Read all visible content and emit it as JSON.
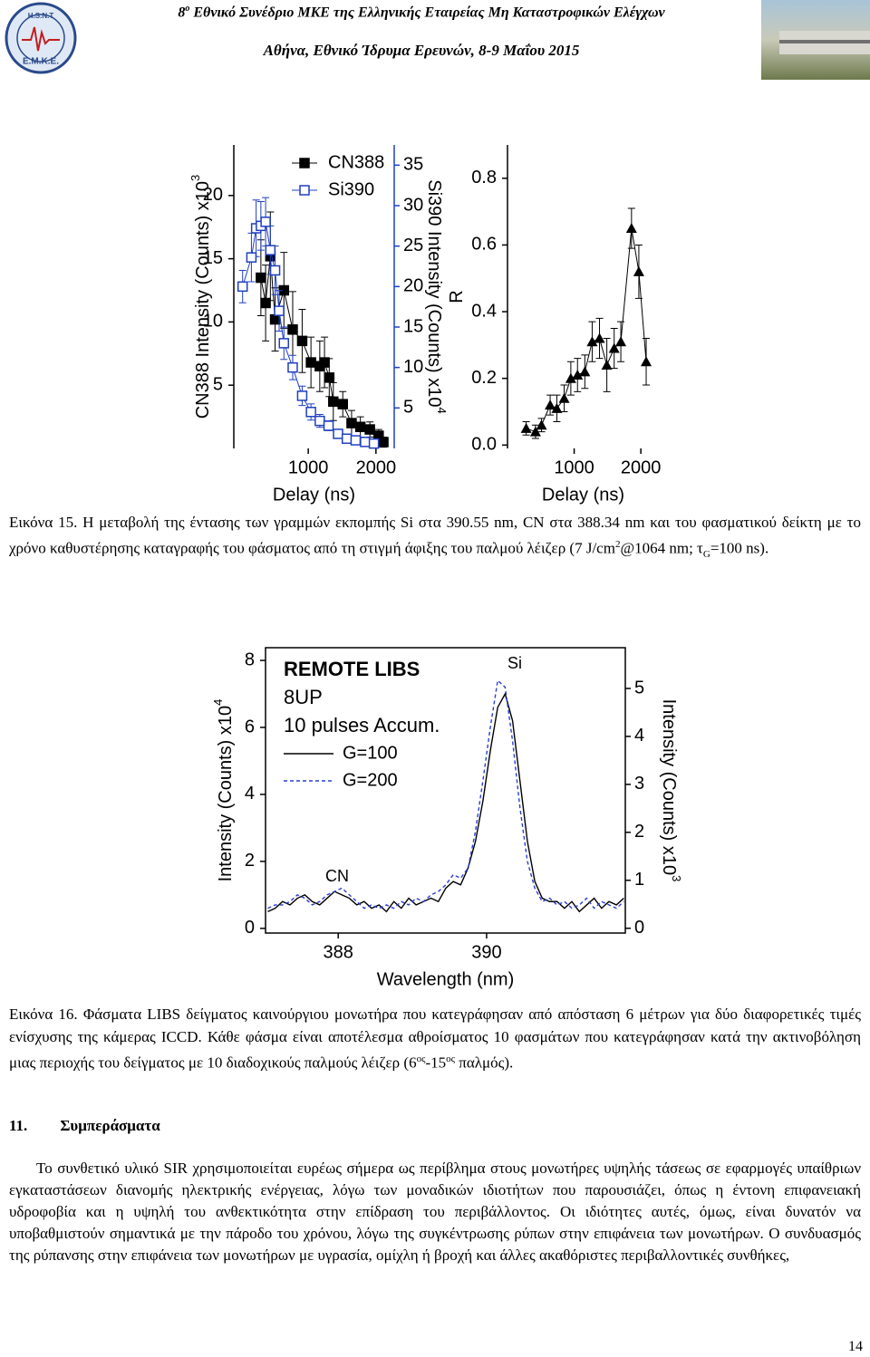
{
  "header": {
    "line1_prefix": "8",
    "line1_sup": "ο",
    "line1": "Εθνικό Συνέδριο ΜΚΕ της Ελληνικής Εταιρείας Μη Καταστροφικών Ελέγχων",
    "line2": "Αθήνα, Εθνικό Ίδρυμα Ερευνών, 8-9 Μαΐου 2015"
  },
  "logo": {
    "top": "H.S.N.T",
    "bottom": "Ε.Μ.Κ.Ε."
  },
  "chart_data": [
    {
      "type": "line",
      "xlabel": "Delay (ns)",
      "ylabel": "CN388 Intensity (Counts) x10",
      "ylabel_exponent": "3",
      "y2label": "Si390 Intensity (Counts) x10",
      "y2label_exponent": "4",
      "xlim": [
        -100,
        2270
      ],
      "xticks": [
        1000,
        2000
      ],
      "ylim": [
        0,
        24
      ],
      "yticks": [
        5,
        10,
        15,
        20
      ],
      "y2lim": [
        0,
        37.5
      ],
      "y2ticks": [
        5,
        10,
        15,
        20,
        25,
        30,
        35
      ],
      "legend": "upper center",
      "series": [
        {
          "name": "CN388",
          "color": "#000000",
          "marker": "filled-square",
          "x": [
            300,
            370,
            440,
            510,
            640,
            770,
            910,
            1040,
            1170,
            1240,
            1310,
            1370,
            1510,
            1640,
            1770,
            1910,
            2040,
            2110
          ],
          "values": [
            13.5,
            11.5,
            15.2,
            10.2,
            12.5,
            9.4,
            8.5,
            6.8,
            6.5,
            6.8,
            5.6,
            3.7,
            3.5,
            2.0,
            1.7,
            1.5,
            1.0,
            0.5
          ],
          "errors": [
            3,
            3,
            3.5,
            2.5,
            3,
            3,
            2.5,
            2,
            2,
            2,
            1.5,
            1.5,
            1,
            1,
            0.8,
            0.6,
            0.5,
            0.4
          ]
        },
        {
          "name": "Si390",
          "color": "#1f3fbf",
          "marker": "open-square",
          "axis": "y2",
          "x": [
            30,
            160,
            230,
            300,
            370,
            440,
            510,
            570,
            640,
            770,
            910,
            1040,
            1170,
            1300,
            1440,
            1570,
            1700,
            1840,
            1970
          ],
          "values": [
            20,
            23.6,
            27.2,
            27.5,
            28,
            24.5,
            22,
            17,
            13,
            10,
            6.5,
            4.5,
            3.4,
            2.8,
            1.8,
            1.2,
            1.0,
            0.8,
            0.6
          ],
          "errors": [
            2,
            3,
            3.5,
            3,
            3,
            3,
            3,
            2.5,
            2,
            1.5,
            1.2,
            1,
            0.8,
            0.6,
            0.5,
            0.4,
            0.3,
            0.3,
            0.3
          ]
        }
      ]
    },
    {
      "type": "line",
      "xlabel": "Delay (ns)",
      "ylabel": "R",
      "xlim": [
        0,
        2270
      ],
      "xticks": [
        1000,
        2000
      ],
      "ylim": [
        -0.01,
        0.9
      ],
      "yticks": [
        {
          "value": 0,
          "label": "0.0"
        },
        0.2,
        0.4,
        0.6,
        0.8
      ],
      "series": [
        {
          "color": "#000000",
          "marker": "triangle",
          "x": [
            280,
            420,
            510,
            640,
            740,
            850,
            950,
            1050,
            1160,
            1270,
            1380,
            1490,
            1600,
            1700,
            1860,
            1970,
            2080
          ],
          "values": [
            0.05,
            0.04,
            0.06,
            0.12,
            0.11,
            0.14,
            0.2,
            0.21,
            0.22,
            0.31,
            0.32,
            0.24,
            0.29,
            0.31,
            0.65,
            0.52,
            0.25
          ],
          "errors": [
            0.02,
            0.02,
            0.02,
            0.03,
            0.04,
            0.04,
            0.05,
            0.05,
            0.05,
            0.06,
            0.06,
            0.08,
            0.06,
            0.06,
            0.06,
            0.08,
            0.07
          ]
        }
      ]
    },
    {
      "type": "line",
      "xlabel": "Wavelength (nm)",
      "ylabel": "Intensity (Counts) x10",
      "ylabel_exponent": "4",
      "y2label": "Intensity (Counts) x10",
      "y2label_exponent": "3",
      "xlim": [
        387.02,
        391.87
      ],
      "xticks": [
        388,
        390
      ],
      "ylim": [
        -0.14,
        8.38
      ],
      "yticks": [
        0,
        2,
        4,
        6,
        8
      ],
      "y2lim": [
        -0.1,
        5.85
      ],
      "y2ticks": [
        0,
        1,
        2,
        3,
        4,
        5
      ],
      "frame": true,
      "notes": [
        "REMOTE LIBS",
        "8UP",
        "10 pulses Accum."
      ],
      "annotations": [
        "Si",
        "CN"
      ],
      "series": [
        {
          "name": "G=100",
          "color": "#000000",
          "linestyle": "solid",
          "x": [
            387.05,
            387.15,
            387.25,
            387.35,
            387.45,
            387.55,
            387.65,
            387.75,
            387.85,
            387.95,
            388.05,
            388.15,
            388.25,
            388.35,
            388.45,
            388.55,
            388.65,
            388.75,
            388.85,
            388.95,
            389.05,
            389.15,
            389.25,
            389.35,
            389.45,
            389.55,
            389.65,
            389.75,
            389.85,
            389.95,
            390.05,
            390.15,
            390.25,
            390.35,
            390.45,
            390.55,
            390.65,
            390.75,
            390.85,
            390.95,
            391.05,
            391.15,
            391.25,
            391.35,
            391.45,
            391.55,
            391.65,
            391.75,
            391.85
          ],
          "values": [
            0.5,
            0.6,
            0.8,
            0.7,
            0.9,
            1.0,
            0.8,
            0.7,
            0.9,
            1.1,
            1.0,
            0.9,
            0.7,
            0.8,
            0.6,
            0.7,
            0.5,
            0.8,
            0.6,
            0.9,
            0.7,
            0.8,
            0.9,
            0.8,
            1.2,
            1.4,
            1.3,
            1.8,
            2.6,
            3.8,
            5.3,
            6.6,
            7.0,
            6.2,
            4.4,
            2.6,
            1.4,
            0.9,
            0.8,
            0.8,
            0.6,
            0.8,
            0.5,
            0.7,
            0.9,
            0.6,
            0.8,
            0.7,
            0.9
          ]
        },
        {
          "name": "G=200",
          "color": "#2a3fd0",
          "linestyle": "dashed",
          "x": [
            387.05,
            387.15,
            387.25,
            387.35,
            387.45,
            387.55,
            387.65,
            387.75,
            387.85,
            387.95,
            388.05,
            388.15,
            388.25,
            388.35,
            388.45,
            388.55,
            388.65,
            388.75,
            388.85,
            388.95,
            389.05,
            389.15,
            389.25,
            389.35,
            389.45,
            389.55,
            389.65,
            389.75,
            389.85,
            389.95,
            390.05,
            390.15,
            390.25,
            390.35,
            390.45,
            390.55,
            390.65,
            390.75,
            390.85,
            390.95,
            391.05,
            391.15,
            391.25,
            391.35,
            391.45,
            391.55,
            391.65,
            391.75,
            391.85
          ],
          "values": [
            0.6,
            0.7,
            0.7,
            0.8,
            1.0,
            0.9,
            0.7,
            0.8,
            1.0,
            1.1,
            1.2,
            1.0,
            0.8,
            0.6,
            0.7,
            0.6,
            0.7,
            0.6,
            0.8,
            0.7,
            0.9,
            0.8,
            1.0,
            1.1,
            1.3,
            1.6,
            1.5,
            1.8,
            2.9,
            4.4,
            6.0,
            7.4,
            7.2,
            5.6,
            3.6,
            2.0,
            1.2,
            0.8,
            0.9,
            0.7,
            0.8,
            0.6,
            0.7,
            0.9,
            0.6,
            0.8,
            0.7,
            0.6,
            0.8
          ]
        }
      ]
    }
  ],
  "figure15_caption": [
    "Εικόνα 15. Η μεταβολή της έντασης των γραμμών εκπομπής Si στα 390.55 nm, CN στα 388.34 nm και του φασματικού δείκτη με το χρόνο καθυστέρησης καταγραφής του φάσματος από τη στιγμή άφιξης του παλμού λέιζερ (7 J/cm",
    "2",
    "@1064 nm; τ",
    "G",
    "=100 ns)."
  ],
  "figure16_caption": [
    "Εικόνα 16. Φάσματα LIBS δείγματος καινούργιου μονωτήρα που κατεγράφησαν από απόσταση 6 μέτρων για δύο διαφορετικές τιμές ενίσχυσης της κάμερας ICCD. Κάθε φάσμα είναι αποτέλεσμα αθροίσματος 10 φασμάτων που κατεγράφησαν κατά την ακτινοβόληση μιας περιοχής του δείγματος με 10 διαδοχικούς παλμούς λέιζερ (6",
    "ος",
    "-15",
    "ος",
    " παλμός)."
  ],
  "section": {
    "number": "11.",
    "title": "Συμπεράσματα"
  },
  "paragraph": "Το συνθετικό υλικό SIR χρησιμοποιείται ευρέως σήμερα ως περίβλημα στους μονωτήρες υψηλής τάσεως σε εφαρμογές υπαίθριων εγκαταστάσεων διανομής ηλεκτρικής ενέργειας, λόγω των μοναδικών ιδιοτήτων που παρουσιάζει, όπως η έντονη επιφανειακή υδροφοβία και η υψηλή του ανθεκτικότητα στην επίδραση του περιβάλλοντος. Οι ιδιότητες αυτές, όμως, είναι δυνατόν να υποβαθμιστούν σημαντικά με την πάροδο του χρόνου, λόγω της συγκέντρωσης ρύπων στην επιφάνεια των μονωτήρων. Ο συνδυασμός της ρύπανσης στην επιφάνεια των μονωτήρων με υγρασία, ομίχλη ή βροχή και άλλες ακαθόριστες περιβαλλοντικές συνθήκες,",
  "page_number": "14"
}
